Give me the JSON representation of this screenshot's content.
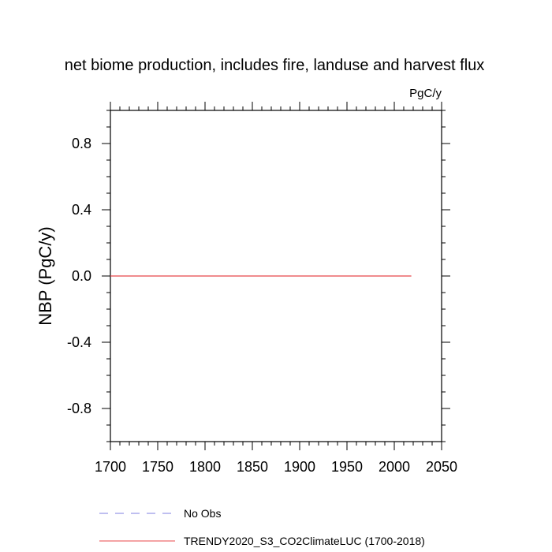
{
  "chart_data": {
    "type": "line",
    "title": "net biome production, includes fire, landuse and harvest flux",
    "units_label": "PgC/y",
    "ylabel": "NBP  (PgC/y)",
    "xlabel": "",
    "xlim": [
      1700,
      2050
    ],
    "ylim": [
      -1.0,
      1.0
    ],
    "x_ticks": [
      1700,
      1750,
      1800,
      1850,
      1900,
      1950,
      2000,
      2050
    ],
    "x_tick_labels": [
      "1700",
      "1750",
      "1800",
      "1850",
      "1900",
      "1950",
      "2000",
      "2050"
    ],
    "y_ticks": [
      -0.8,
      -0.4,
      0.0,
      0.4,
      0.8
    ],
    "y_tick_labels": [
      "-0.8",
      "-0.4",
      "0.0",
      "0.4",
      "0.8"
    ],
    "grid": false,
    "legend_position": "bottom",
    "series": [
      {
        "name": "TRENDY2020_S3_CO2ClimateLUC (1700-2018)",
        "color": "#e8474a",
        "style": "solid",
        "x": [
          1700,
          2018
        ],
        "y": [
          0.0,
          0.0
        ]
      }
    ],
    "legend": [
      {
        "label": "No Obs",
        "color": "#7f7fe0",
        "style": "dashed"
      },
      {
        "label": "TRENDY2020_S3_CO2ClimateLUC (1700-2018)",
        "color": "#e8474a",
        "style": "solid"
      }
    ]
  }
}
